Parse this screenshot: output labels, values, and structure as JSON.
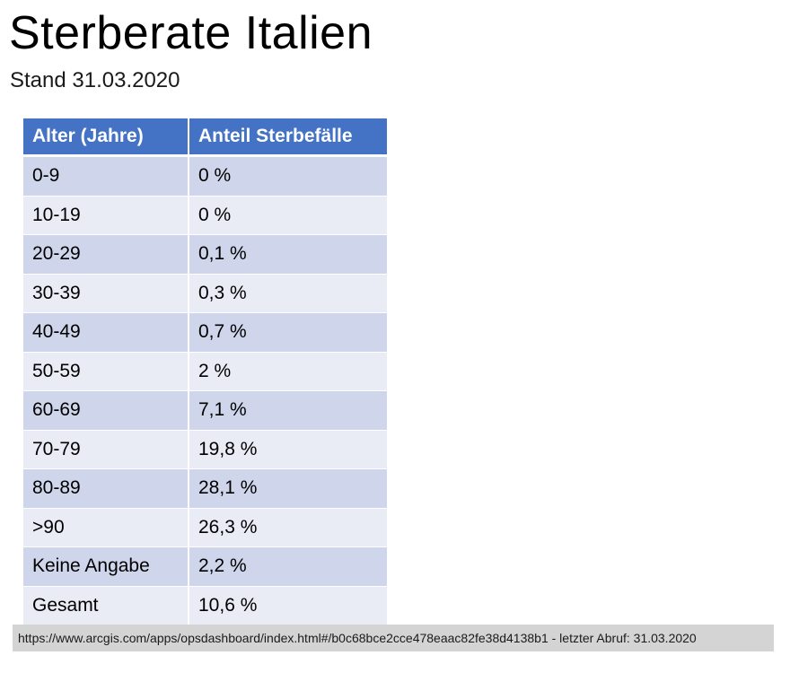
{
  "title": "Sterberate Italien",
  "subtitle": "Stand 31.03.2020",
  "table": {
    "headers": [
      "Alter (Jahre)",
      "Anteil Sterbefälle"
    ],
    "rows": [
      {
        "age": "0-9",
        "share": "0 %"
      },
      {
        "age": "10-19",
        "share": "0 %"
      },
      {
        "age": "20-29",
        "share": "0,1 %"
      },
      {
        "age": "30-39",
        "share": "0,3 %"
      },
      {
        "age": "40-49",
        "share": "0,7 %"
      },
      {
        "age": "50-59",
        "share": "2 %"
      },
      {
        "age": "60-69",
        "share": "7,1 %"
      },
      {
        "age": "70-79",
        "share": "19,8 %"
      },
      {
        "age": "80-89",
        "share": "28,1 %"
      },
      {
        "age": ">90",
        "share": "26,3 %"
      },
      {
        "age": "Keine Angabe",
        "share": "2,2 %"
      },
      {
        "age": "Gesamt",
        "share": "10,6 %"
      }
    ]
  },
  "source": "https://www.arcgis.com/apps/opsdashboard/index.html#/b0c68bce2cce478eaac82fe38d4138b1 - letzter Abruf: 31.03.2020",
  "colors": {
    "header_background": "#4472c4",
    "row_dark": "#cfd5ea",
    "row_light": "#e9ebf5",
    "source_background": "#d4d4d4"
  }
}
